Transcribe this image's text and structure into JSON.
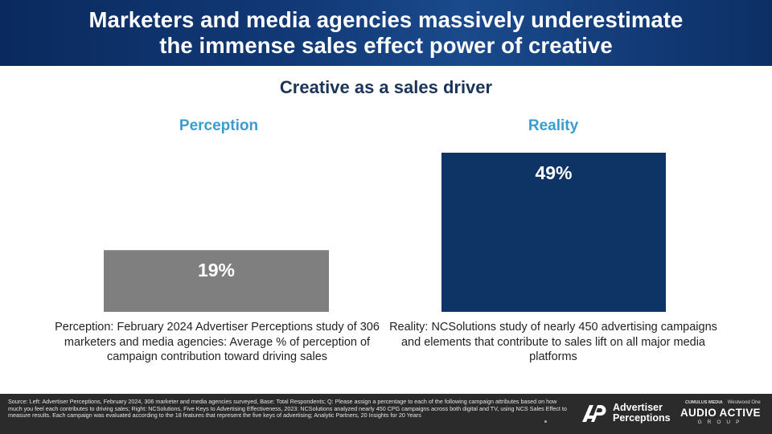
{
  "header": {
    "title": "Marketers and media agencies massively underestimate\nthe immense sales effect power of creative"
  },
  "subtitle": "Creative as a sales driver",
  "chart_data": {
    "type": "bar",
    "title": "Creative as a sales driver",
    "categories": [
      "Perception",
      "Reality"
    ],
    "values": [
      19,
      49
    ],
    "value_labels": [
      "19%",
      "49%"
    ],
    "ylim": [
      0,
      50
    ],
    "grid": false,
    "colors": [
      "#7f7f7f",
      "#0d3464"
    ]
  },
  "captions": {
    "left": "Perception: February 2024 Advertiser Perceptions study of 306 marketers and media agencies: Average % of perception of campaign contribution toward driving sales",
    "right": "Reality: NCSolutions study of nearly 450 advertising campaigns and elements that contribute to sales lift on all major media platforms"
  },
  "footer": {
    "source": "Source: Left: Advertiser Perceptions, February 2024, 306 marketer and media agencies surveyed, Base: Total Respondents; Q: Please assign a percentage to each of the following campaign attributes based on how much you feel each contributes to driving sales; Right: NCSolutions, Five Keys to Advertising Effectiveness, 2023: NCSolutions analyzed nearly 450 CPG campaigns across both digital and TV, using NCS Sales Effect to measure results. Each campaign was evaluated according to the 18 features that represent the five keys of advertising; Analytic Partners, 20 Insights for 20 Years",
    "ap_logo_text": "Advertiser\nPerceptions",
    "aag_top_left": "CUMULUS MEDIA",
    "aag_top_right": "Westwood One",
    "aag_name": "AUDIO ACTIVE",
    "aag_group": "GROUP"
  },
  "colors": {
    "header_bg": "#123a78",
    "subtitle": "#1b3558",
    "column_heading": "#3b9ccf",
    "perception_bar": "#7f7f7f",
    "reality_bar": "#0d3464",
    "footer_bg": "#2b2b2b"
  }
}
